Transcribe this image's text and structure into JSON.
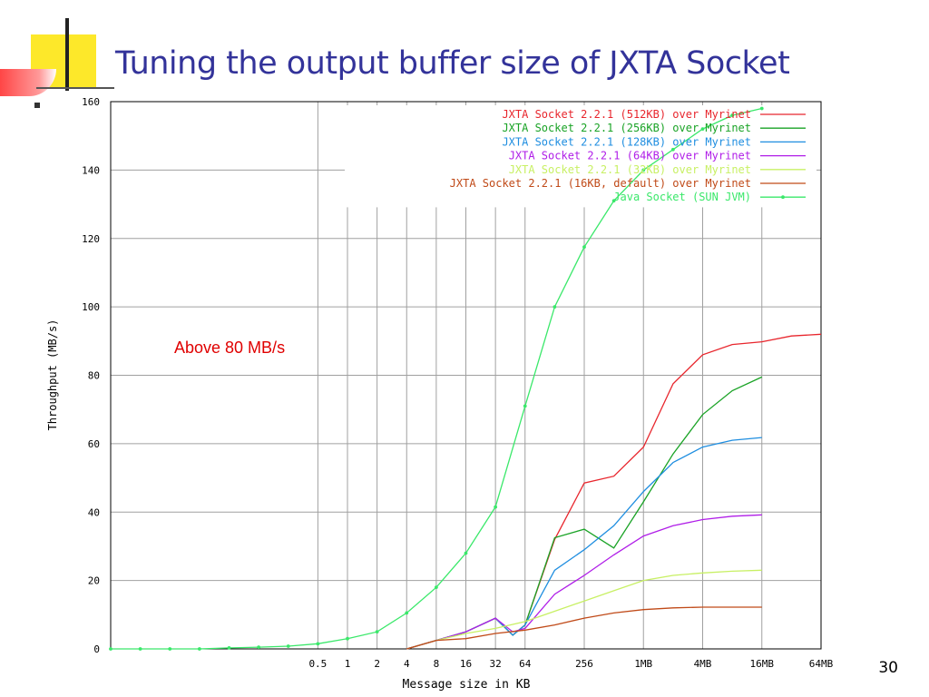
{
  "slide": {
    "title": "Tuning the output buffer size of JXTA Socket",
    "page_number": "30",
    "annotation": "Above 80 MB/s"
  },
  "chart_data": {
    "type": "line",
    "title": "",
    "xlabel": "Message size in KB",
    "ylabel": "Throughput (MB/s)",
    "x_scale": "log2",
    "x_unit": "KB",
    "x_tick_labels": [
      "0.5",
      "1",
      "2",
      "4",
      "8",
      "16",
      "32",
      "64",
      "256",
      "1MB",
      "4MB",
      "16MB",
      "64MB"
    ],
    "x_tick_values": [
      0.5,
      1,
      2,
      4,
      8,
      16,
      32,
      64,
      256,
      1024,
      4096,
      16384,
      65536
    ],
    "xlim": [
      0.00390625,
      65536
    ],
    "y_ticks": [
      0,
      20,
      40,
      60,
      80,
      100,
      120,
      140,
      160
    ],
    "ylim": [
      0,
      160
    ],
    "grid": true,
    "legend_position": "top-right",
    "series": [
      {
        "name": "JXTA Socket 2.2.1 (512KB) over Myrinet",
        "color": "#e8262d",
        "marker": false,
        "x": [
          4,
          8,
          16,
          32,
          48,
          64,
          128,
          256,
          512,
          1024,
          2048,
          4096,
          8192,
          16384,
          32768,
          65536
        ],
        "y": [
          0,
          2.5,
          5,
          9,
          4,
          7,
          32,
          48.5,
          50.5,
          59,
          77.5,
          86,
          89,
          89.8,
          91.5,
          92
        ]
      },
      {
        "name": "JXTA Socket 2.2.1 (256KB) over Myrinet",
        "color": "#1aa326",
        "marker": false,
        "x": [
          4,
          8,
          16,
          32,
          48,
          64,
          128,
          256,
          512,
          1024,
          2048,
          4096,
          8192,
          16384
        ],
        "y": [
          0,
          2.5,
          5,
          9,
          4,
          7,
          32.5,
          35,
          29.5,
          43,
          57,
          68.5,
          75.5,
          79.5
        ]
      },
      {
        "name": "JXTA Socket 2.2.1 (128KB) over Myrinet",
        "color": "#1f8ee0",
        "marker": false,
        "x": [
          4,
          8,
          16,
          32,
          48,
          64,
          128,
          256,
          512,
          1024,
          2048,
          4096,
          8192,
          16384
        ],
        "y": [
          0,
          2.5,
          5,
          9,
          4,
          7,
          23,
          29,
          36,
          46,
          54.5,
          59,
          61,
          61.8
        ]
      },
      {
        "name": "JXTA Socket 2.2.1 (64KB) over Myrinet",
        "color": "#b01ee8",
        "marker": false,
        "x": [
          4,
          8,
          16,
          32,
          48,
          64,
          128,
          256,
          512,
          1024,
          2048,
          4096,
          8192,
          16384
        ],
        "y": [
          0,
          2.5,
          5,
          9,
          5,
          6,
          16,
          21.5,
          27.5,
          33,
          36,
          37.8,
          38.8,
          39.2
        ]
      },
      {
        "name": "JXTA Socket 2.2.1 (32KB) over Myrinet",
        "color": "#c8f064",
        "marker": false,
        "x": [
          4,
          8,
          16,
          32,
          64,
          128,
          256,
          512,
          1024,
          2048,
          4096,
          8192,
          16384
        ],
        "y": [
          0,
          2.5,
          4.5,
          6,
          8,
          11,
          14,
          17,
          20,
          21.5,
          22.2,
          22.7,
          23
        ]
      },
      {
        "name": "JXTA Socket 2.2.1 (16KB, default) over Myrinet",
        "color": "#c04a18",
        "marker": false,
        "x": [
          4,
          8,
          16,
          32,
          64,
          128,
          256,
          512,
          1024,
          2048,
          4096,
          8192,
          16384
        ],
        "y": [
          0,
          2.5,
          3,
          4.5,
          5.5,
          7,
          9,
          10.5,
          11.5,
          12,
          12.2,
          12.2,
          12.2
        ]
      },
      {
        "name": "Java Socket (SUN JVM)",
        "color": "#3ae86a",
        "marker": true,
        "x": [
          0.00390625,
          0.0078125,
          0.015625,
          0.03125,
          0.0625,
          0.125,
          0.25,
          0.5,
          1,
          2,
          4,
          8,
          16,
          32,
          64,
          128,
          256,
          512,
          1024,
          2048,
          4096,
          8192,
          16384
        ],
        "y": [
          0,
          0,
          0,
          0,
          0.3,
          0.5,
          0.8,
          1.5,
          3,
          5,
          10.5,
          18,
          28,
          41.5,
          71,
          100,
          117.5,
          131,
          140,
          146,
          152,
          156,
          158
        ]
      }
    ]
  }
}
